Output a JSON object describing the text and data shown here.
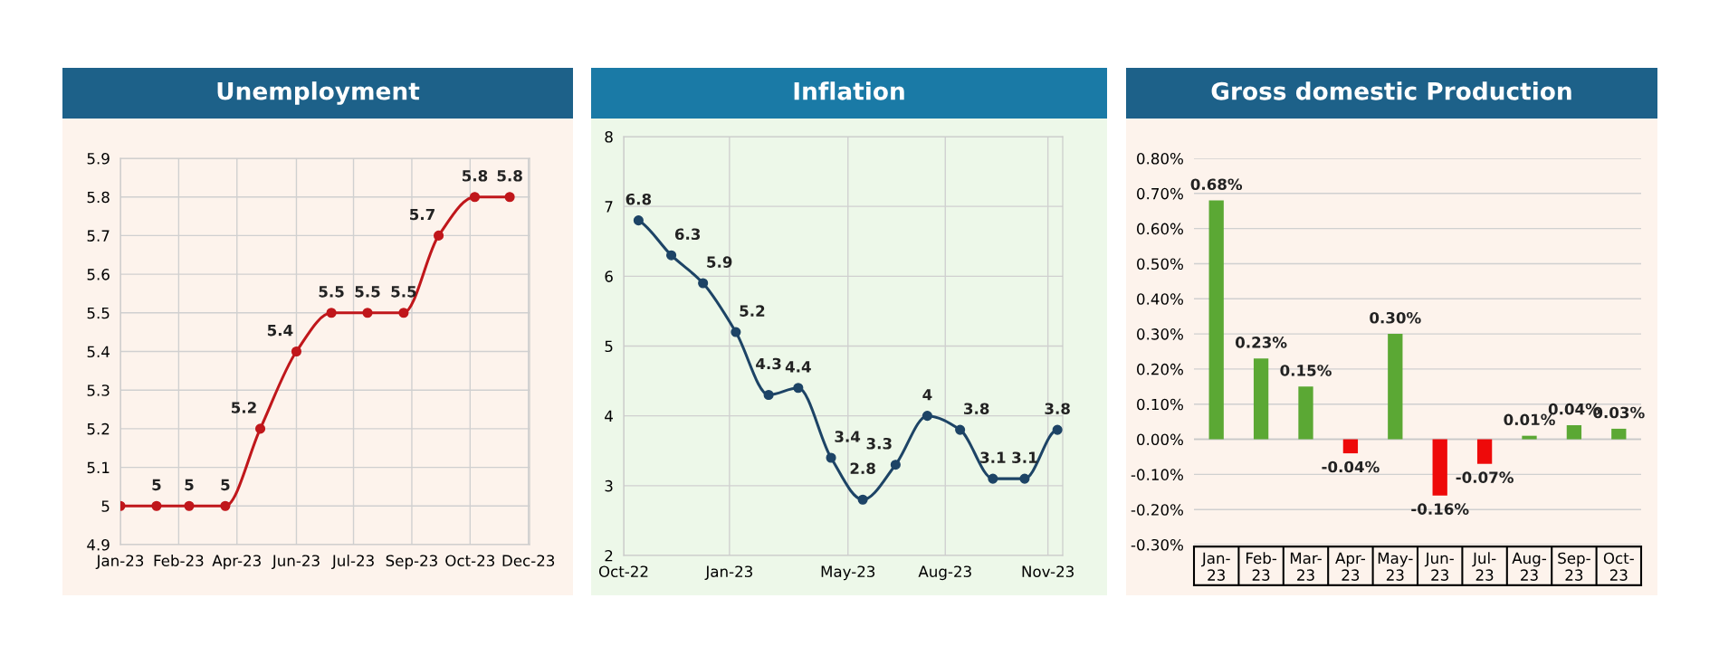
{
  "chart_data": [
    {
      "type": "line",
      "title": "Unemployment",
      "x": [
        "2023-01-01",
        "2023-02-01",
        "2023-03-01",
        "2023-04-01",
        "2023-05-01",
        "2023-06-01",
        "2023-07-01",
        "2023-08-01",
        "2023-09-01",
        "2023-10-01",
        "2023-11-01",
        "2023-12-01"
      ],
      "series": [
        {
          "color": "#c0171b",
          "values": [
            5,
            5,
            5,
            5,
            5.2,
            5.4,
            5.5,
            5.5,
            5.5,
            5.7,
            5.8,
            5.8
          ],
          "value_labels": [
            null,
            "5",
            "5",
            "5",
            "5.2",
            "5.4",
            "5.5",
            "5.5",
            "5.5",
            "5.7",
            "5.8",
            "5.8"
          ]
        }
      ],
      "xlim": [
        "2023-01-01",
        "2023-12-18"
      ],
      "xticks": [
        {
          "value": "2023-01-01",
          "label": "Jan-23"
        },
        {
          "value": "2023-02-20",
          "label": "Feb-23"
        },
        {
          "value": "2023-04-11",
          "label": "Apr-23"
        },
        {
          "value": "2023-06-01",
          "label": "Jun-23"
        },
        {
          "value": "2023-07-20",
          "label": "Jul-23"
        },
        {
          "value": "2023-09-08",
          "label": "Sep-23"
        },
        {
          "value": "2023-10-28",
          "label": "Oct-23"
        },
        {
          "value": "2023-12-17",
          "label": "Dec-23"
        }
      ],
      "ylim": [
        4.9,
        5.9
      ],
      "yticks": [
        4.9,
        5,
        5.1,
        5.2,
        5.3,
        5.4,
        5.5,
        5.6,
        5.7,
        5.8,
        5.9
      ],
      "grid": true,
      "marker": "circle",
      "line_style": "solid"
    },
    {
      "type": "line",
      "title": "Inflation",
      "x": [
        "2022-10-15",
        "2022-11-15",
        "2022-12-15",
        "2023-01-15",
        "2023-02-15",
        "2023-03-15",
        "2023-04-15",
        "2023-05-15",
        "2023-06-15",
        "2023-07-15",
        "2023-08-15",
        "2023-09-15",
        "2023-10-15",
        "2023-11-15"
      ],
      "series": [
        {
          "color": "#1d4466",
          "values": [
            6.8,
            6.3,
            5.9,
            5.2,
            4.3,
            4.4,
            3.4,
            2.8,
            3.3,
            4,
            3.8,
            3.1,
            3.1,
            3.8
          ]
        }
      ],
      "data_labels": true,
      "xlim": [
        "2022-10-01",
        "2023-11-20"
      ],
      "xticks": [
        {
          "value": "2022-10-01",
          "label": "Oct-22"
        },
        {
          "value": "2023-01-09",
          "label": "Jan-23"
        },
        {
          "value": "2023-05-01",
          "label": "May-23"
        },
        {
          "value": "2023-08-01",
          "label": "Aug-23"
        },
        {
          "value": "2023-11-06",
          "label": "Nov-23"
        }
      ],
      "ylim": [
        2,
        8
      ],
      "yticks": [
        2,
        3,
        4,
        5,
        6,
        7,
        8
      ],
      "grid": true,
      "marker": "circle",
      "line_style": "solid"
    },
    {
      "type": "bar",
      "title": "Gross domestic Production",
      "categories": [
        "Jan-23",
        "Feb-23",
        "Mar-23",
        "Apr-23",
        "May-23",
        "Jun-23",
        "Jul-23",
        "Aug-23",
        "Sep-23",
        "Oct-23"
      ],
      "values": [
        0.68,
        0.23,
        0.15,
        -0.04,
        0.3,
        -0.16,
        -0.07,
        0.01,
        0.04,
        0.03
      ],
      "colors": [
        "#5ba834",
        "#5ba834",
        "#5ba834",
        "#ee0a0a",
        "#5ba834",
        "#ee0a0a",
        "#ee0a0a",
        "#5ba834",
        "#5ba834",
        "#5ba834"
      ],
      "value_labels": [
        "0.68%",
        "0.23%",
        "0.15%",
        "-0.04%",
        "0.30%",
        "-0.16%",
        "-0.07%",
        "0.01%",
        "0.04%",
        "0.03%"
      ],
      "ylim": [
        -0.3,
        0.8
      ],
      "yticks": [
        {
          "value": -0.3,
          "label": "-0.30%"
        },
        {
          "value": -0.2,
          "label": "-0.20%"
        },
        {
          "value": -0.1,
          "label": "-0.10%"
        },
        {
          "value": 0,
          "label": "0.00%"
        },
        {
          "value": 0.1,
          "label": "0.10%"
        },
        {
          "value": 0.2,
          "label": "0.20%"
        },
        {
          "value": 0.3,
          "label": "0.30%"
        },
        {
          "value": 0.4,
          "label": "0.40%"
        },
        {
          "value": 0.5,
          "label": "0.50%"
        },
        {
          "value": 0.6,
          "label": "0.60%"
        },
        {
          "value": 0.7,
          "label": "0.70%"
        },
        {
          "value": 0.8,
          "label": "0.80%"
        }
      ],
      "grid": "y"
    }
  ]
}
